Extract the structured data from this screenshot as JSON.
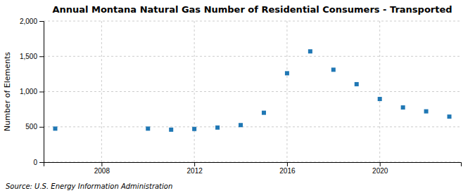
{
  "chart_data": {
    "type": "scatter",
    "title": "Annual Montana Natural Gas Number of Residential Consumers - Transported",
    "ylabel": "Number of Elements",
    "annotations": [
      "Source: U.S. Energy Information Administration"
    ],
    "x": [
      2006,
      2010,
      2011,
      2012,
      2013,
      2014,
      2015,
      2016,
      2017,
      2018,
      2019,
      2020,
      2021,
      2022,
      2023
    ],
    "values": [
      475,
      475,
      460,
      470,
      490,
      525,
      700,
      1260,
      1570,
      1310,
      1105,
      895,
      775,
      720,
      645
    ],
    "marker": "square",
    "xlim": [
      2005.5,
      2023.5
    ],
    "xticks": [
      2008,
      2012,
      2016,
      2020
    ],
    "ylim": [
      0,
      2000
    ],
    "yticks": [
      0,
      500,
      {
        "value": 1000,
        "label": "1,000"
      },
      {
        "value": 1500,
        "label": "1,500"
      },
      {
        "value": 2000,
        "label": "2,000"
      }
    ],
    "grid": true
  }
}
